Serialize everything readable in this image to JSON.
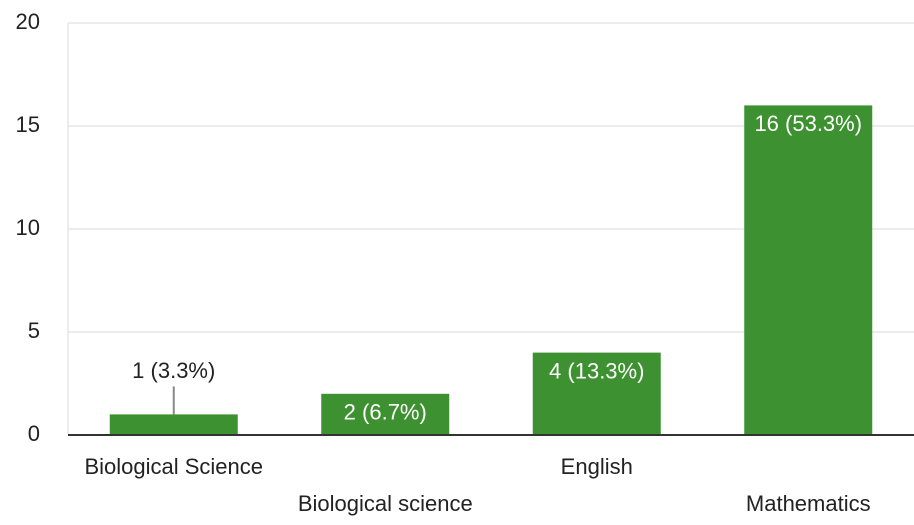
{
  "chart_data": {
    "type": "bar",
    "categories": [
      "Biological Science",
      "Biological science",
      "English",
      "Mathematics"
    ],
    "values": [
      1,
      2,
      4,
      16
    ],
    "value_labels": [
      "1 (3.3%)",
      "2 (6.7%)",
      "4 (13.3%)",
      "16 (53.3%)"
    ],
    "color": "#3d9130",
    "ylim": [
      0,
      20
    ],
    "yticks": [
      0,
      5,
      10,
      15,
      20
    ],
    "grid": true
  }
}
